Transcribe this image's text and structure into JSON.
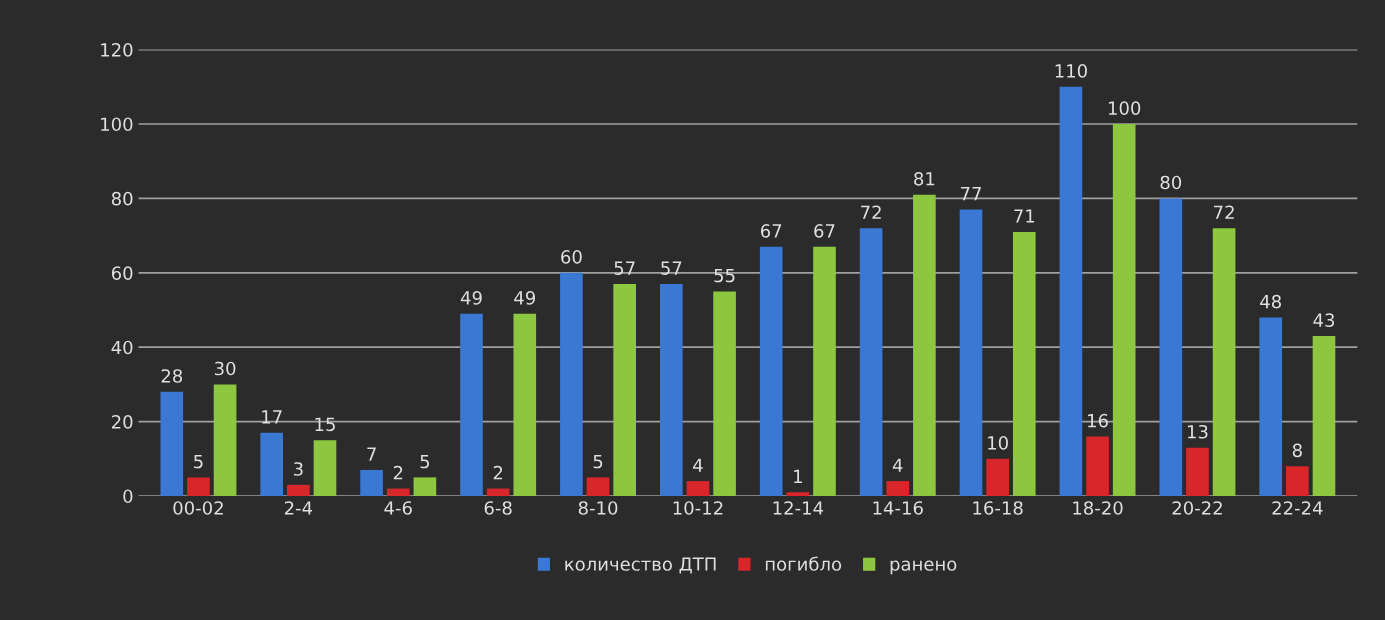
{
  "chart_data": {
    "type": "bar",
    "categories": [
      "00-02",
      "2-4",
      "4-6",
      "6-8",
      "8-10",
      "10-12",
      "12-14",
      "14-16",
      "16-18",
      "18-20",
      "20-22",
      "22-24"
    ],
    "series": [
      {
        "name": "количество ДТП",
        "color": "#3a78d4",
        "values": [
          28,
          17,
          7,
          49,
          60,
          57,
          67,
          72,
          77,
          110,
          80,
          48
        ]
      },
      {
        "name": "погибло",
        "color": "#d8262a",
        "values": [
          5,
          3,
          2,
          2,
          5,
          4,
          1,
          4,
          10,
          16,
          13,
          8
        ]
      },
      {
        "name": "ранено",
        "color": "#8dc63f",
        "values": [
          30,
          15,
          5,
          49,
          57,
          55,
          67,
          81,
          71,
          100,
          72,
          43
        ]
      }
    ],
    "ylim": [
      0,
      120
    ],
    "yticks": [
      0,
      20,
      40,
      60,
      80,
      100,
      120
    ],
    "grid": "y",
    "legend": "bottom",
    "data_labels": true
  }
}
